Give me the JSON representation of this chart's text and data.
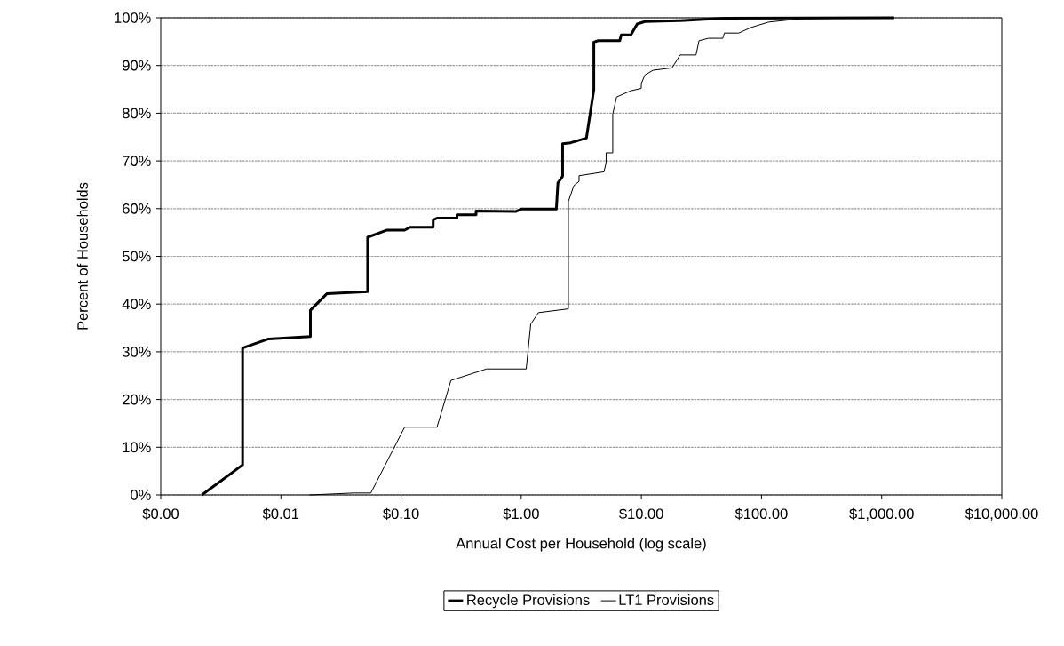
{
  "chart_data": {
    "type": "line",
    "xlabel": "Annual Cost per Household (log scale)",
    "ylabel": "Percent of Households",
    "log": "x",
    "grid": "y",
    "legend": "bottom",
    "marker": "none",
    "line_style": "solid",
    "xlim": [
      0.001,
      10000
    ],
    "ylim": [
      0,
      100
    ],
    "xticks": [
      {
        "value": 0.001,
        "label": "$0.00"
      },
      {
        "value": 0.01,
        "label": "$0.01"
      },
      {
        "value": 0.1,
        "label": "$0.10"
      },
      {
        "value": 1,
        "label": "$1.00"
      },
      {
        "value": 10,
        "label": "$10.00"
      },
      {
        "value": 100,
        "label": "$100.00"
      },
      {
        "value": 1000,
        "label": "$1,000.00"
      },
      {
        "value": 10000,
        "label": "$10,000.00"
      }
    ],
    "yticks": [
      {
        "value": 0,
        "label": "0%"
      },
      {
        "value": 10,
        "label": "10%"
      },
      {
        "value": 20,
        "label": "20%"
      },
      {
        "value": 30,
        "label": "30%"
      },
      {
        "value": 40,
        "label": "40%"
      },
      {
        "value": 50,
        "label": "50%"
      },
      {
        "value": 60,
        "label": "60%"
      },
      {
        "value": 70,
        "label": "70%"
      },
      {
        "value": 80,
        "label": "80%"
      },
      {
        "value": 90,
        "label": "90%"
      },
      {
        "value": 100,
        "label": "100%"
      }
    ],
    "series": [
      {
        "name": "Recycle Provisions",
        "color": "#000000",
        "x": [
          0.0022,
          0.0048,
          0.0048,
          0.0079,
          0.0176,
          0.0176,
          0.0242,
          0.0527,
          0.0527,
          0.0766,
          0.107,
          0.119,
          0.185,
          0.185,
          0.199,
          0.292,
          0.292,
          0.421,
          0.421,
          0.9,
          1.0,
          1.96,
          2.02,
          2.21,
          2.21,
          2.58,
          3.49,
          4.02,
          4.02,
          4.37,
          6.61,
          6.8,
          8.18,
          9.23,
          10.7,
          21,
          49,
          1270
        ],
        "values": [
          0,
          6.3,
          30.8,
          32.7,
          33.2,
          38.7,
          42.2,
          42.6,
          54,
          55.5,
          55.5,
          56.1,
          56.1,
          57.6,
          58,
          58,
          58.7,
          58.7,
          59.5,
          59.4,
          59.9,
          59.9,
          65.4,
          66.8,
          73.6,
          73.8,
          74.8,
          84.9,
          94.9,
          95.2,
          95.2,
          96.4,
          96.4,
          98.7,
          99.2,
          99.4,
          99.9,
          100
        ]
      },
      {
        "name": "LT1 Provisions",
        "color": "#000000",
        "x": [
          0.0173,
          0.0405,
          0.056,
          0.107,
          0.199,
          0.26,
          0.514,
          1.1,
          1.2,
          1.39,
          2.47,
          2.47,
          2.74,
          3.03,
          3.03,
          4.88,
          5.09,
          5.09,
          5.78,
          5.78,
          6.22,
          8.18,
          9.98,
          9.98,
          10.7,
          12.5,
          18,
          21,
          28.5,
          30.2,
          36.2,
          47.6,
          49.1,
          64.6,
          82.4,
          115,
          211,
          388,
          1270
        ],
        "values": [
          0,
          0.4,
          0.4,
          14.2,
          14.2,
          24,
          26.4,
          26.4,
          35.8,
          38.2,
          39,
          61.5,
          64.8,
          65.7,
          66.9,
          67.7,
          69.6,
          71.7,
          71.7,
          79.8,
          83.4,
          84.7,
          85.2,
          86.2,
          88,
          89,
          89.5,
          92.2,
          92.2,
          95.2,
          95.7,
          95.7,
          96.8,
          96.8,
          98,
          99.1,
          99.8,
          99.9,
          100
        ]
      }
    ]
  }
}
